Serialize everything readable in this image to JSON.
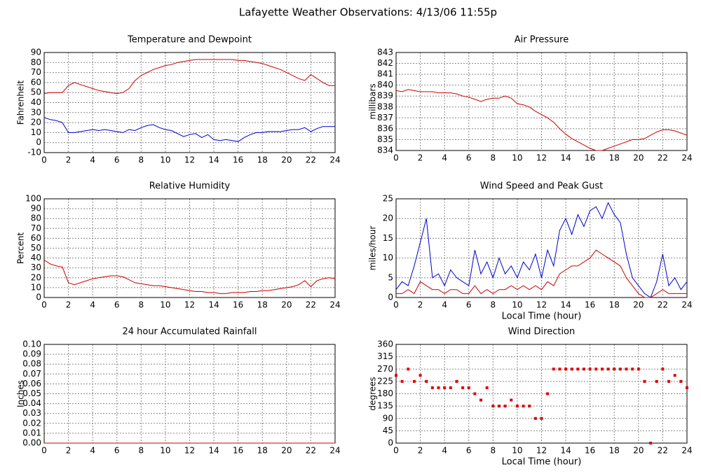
{
  "title": "Lafayette Weather Observations: 4/13/06 11:55p",
  "chart_data": [
    {
      "type": "line",
      "title": "Temperature and Dewpoint",
      "ylabel": "Fahrenheit",
      "x": [
        0,
        0.5,
        1,
        1.5,
        2,
        2.5,
        3,
        3.5,
        4,
        4.5,
        5,
        5.5,
        6,
        6.5,
        7,
        7.5,
        8,
        8.5,
        9,
        9.5,
        10,
        10.5,
        11,
        11.5,
        12,
        12.5,
        13,
        13.5,
        14,
        14.5,
        15,
        15.5,
        16,
        16.5,
        17,
        17.5,
        18,
        18.5,
        19,
        19.5,
        20,
        20.5,
        21,
        21.5,
        22,
        22.5,
        23,
        23.5,
        24
      ],
      "series": [
        {
          "color": "#cc0000",
          "values": [
            49,
            50,
            50,
            50,
            57,
            60,
            58,
            56,
            54,
            52,
            51,
            50,
            49,
            50,
            54,
            62,
            67,
            70,
            73,
            75,
            77,
            78,
            80,
            81,
            82,
            83,
            83,
            83,
            83,
            83,
            83,
            83,
            82,
            82,
            81,
            80,
            79,
            77,
            75,
            73,
            70,
            67,
            64,
            62,
            68,
            64,
            60,
            57,
            57
          ]
        },
        {
          "color": "#0000cc",
          "values": [
            25,
            23,
            22,
            20,
            10,
            10,
            11,
            12,
            13,
            12,
            13,
            12,
            11,
            10,
            13,
            12,
            15,
            17,
            18,
            15,
            13,
            12,
            9,
            6,
            8,
            9,
            5,
            8,
            3,
            2,
            3,
            2,
            1,
            5,
            8,
            10,
            10,
            11,
            11,
            11,
            12,
            13,
            13,
            15,
            11,
            14,
            16,
            16,
            16
          ]
        }
      ],
      "xlim": [
        0,
        24
      ],
      "xticks": [
        0,
        2,
        4,
        6,
        8,
        10,
        12,
        14,
        16,
        18,
        20,
        22,
        24
      ],
      "ylim": [
        -10,
        90
      ],
      "yticks": [
        -10,
        0,
        10,
        20,
        30,
        40,
        50,
        60,
        70,
        80,
        90
      ],
      "grid": true
    },
    {
      "type": "line",
      "title": "Air Pressure",
      "ylabel": "millibars",
      "x": [
        0,
        0.5,
        1,
        1.5,
        2,
        2.5,
        3,
        3.5,
        4,
        4.5,
        5,
        5.5,
        6,
        6.5,
        7,
        7.5,
        8,
        8.5,
        9,
        9.5,
        10,
        10.5,
        11,
        11.5,
        12,
        12.5,
        13,
        13.5,
        14,
        14.5,
        15,
        15.5,
        16,
        16.5,
        17,
        17.5,
        18,
        18.5,
        19,
        19.5,
        20,
        20.5,
        21,
        21.5,
        22,
        22.5,
        23,
        23.5,
        24
      ],
      "series": [
        {
          "color": "#cc0000",
          "values": [
            839.5,
            839.4,
            839.6,
            839.5,
            839.4,
            839.4,
            839.4,
            839.3,
            839.3,
            839.3,
            839.2,
            839.0,
            838.9,
            838.7,
            838.5,
            838.7,
            838.8,
            838.8,
            839.0,
            838.8,
            838.3,
            838.2,
            838.0,
            837.6,
            837.3,
            837.0,
            836.6,
            836.0,
            835.5,
            835.1,
            834.8,
            834.5,
            834.2,
            834.0,
            834.0,
            834.2,
            834.4,
            834.6,
            834.8,
            835.0,
            835.0,
            835.1,
            835.4,
            835.7,
            835.9,
            835.9,
            835.8,
            835.6,
            835.4
          ]
        }
      ],
      "xlim": [
        0,
        24
      ],
      "xticks": [
        0,
        2,
        4,
        6,
        8,
        10,
        12,
        14,
        16,
        18,
        20,
        22,
        24
      ],
      "ylim": [
        834,
        843
      ],
      "yticks": [
        834,
        835,
        836,
        837,
        838,
        839,
        840,
        841,
        842,
        843
      ],
      "grid": true
    },
    {
      "type": "line",
      "title": "Relative Humidity",
      "ylabel": "Percent",
      "x": [
        0,
        0.5,
        1,
        1.5,
        2,
        2.5,
        3,
        3.5,
        4,
        4.5,
        5,
        5.5,
        6,
        6.5,
        7,
        7.5,
        8,
        8.5,
        9,
        9.5,
        10,
        10.5,
        11,
        11.5,
        12,
        12.5,
        13,
        13.5,
        14,
        14.5,
        15,
        15.5,
        16,
        16.5,
        17,
        17.5,
        18,
        18.5,
        19,
        19.5,
        20,
        20.5,
        21,
        21.5,
        22,
        22.5,
        23,
        23.5,
        24
      ],
      "series": [
        {
          "color": "#cc0000",
          "values": [
            38,
            34,
            32,
            31,
            15,
            13,
            15,
            17,
            19,
            20,
            21,
            22,
            22,
            21,
            18,
            15,
            14,
            13,
            12,
            12,
            11,
            10,
            9,
            8,
            7,
            6,
            6,
            5,
            5,
            4,
            4,
            5,
            5,
            5,
            6,
            6,
            7,
            7,
            8,
            9,
            10,
            11,
            13,
            17,
            11,
            17,
            19,
            20,
            19
          ]
        }
      ],
      "xlim": [
        0,
        24
      ],
      "xticks": [
        0,
        2,
        4,
        6,
        8,
        10,
        12,
        14,
        16,
        18,
        20,
        22,
        24
      ],
      "ylim": [
        0,
        100
      ],
      "yticks": [
        0,
        10,
        20,
        30,
        40,
        50,
        60,
        70,
        80,
        90,
        100
      ],
      "grid": true
    },
    {
      "type": "line",
      "title": "Wind Speed and Peak Gust",
      "ylabel": "miles/hour",
      "xlabel": "Local Time (hour)",
      "x": [
        0,
        0.5,
        1,
        1.5,
        2,
        2.5,
        3,
        3.5,
        4,
        4.5,
        5,
        5.5,
        6,
        6.5,
        7,
        7.5,
        8,
        8.5,
        9,
        9.5,
        10,
        10.5,
        11,
        11.5,
        12,
        12.5,
        13,
        13.5,
        14,
        14.5,
        15,
        15.5,
        16,
        16.5,
        17,
        17.5,
        18,
        18.5,
        19,
        19.5,
        20,
        20.5,
        21,
        21.5,
        22,
        22.5,
        23,
        23.5,
        24
      ],
      "series": [
        {
          "color": "#0000cc",
          "values": [
            2,
            4,
            3,
            8,
            14,
            20,
            5,
            6,
            3,
            7,
            5,
            4,
            3,
            12,
            6,
            9,
            5,
            10,
            6,
            8,
            5,
            9,
            7,
            11,
            5,
            12,
            8,
            17,
            20,
            16,
            21,
            18,
            22,
            23,
            20,
            24,
            21,
            19,
            11,
            5,
            3,
            1,
            0,
            4,
            11,
            3,
            5,
            2,
            4
          ]
        },
        {
          "color": "#cc0000",
          "values": [
            1,
            1,
            2,
            1,
            4,
            3,
            2,
            2,
            1,
            2,
            2,
            1,
            1,
            3,
            1,
            2,
            1,
            2,
            2,
            3,
            2,
            3,
            2,
            3,
            2,
            4,
            3,
            6,
            7,
            8,
            8,
            9,
            10,
            12,
            11,
            10,
            9,
            8,
            5,
            3,
            1,
            0,
            0,
            1,
            2,
            1,
            1,
            1,
            1
          ]
        }
      ],
      "xlim": [
        0,
        24
      ],
      "xticks": [
        0,
        2,
        4,
        6,
        8,
        10,
        12,
        14,
        16,
        18,
        20,
        22,
        24
      ],
      "ylim": [
        0,
        25
      ],
      "yticks": [
        0,
        5,
        10,
        15,
        20,
        25
      ],
      "grid": true
    },
    {
      "type": "line",
      "title": "24 hour Accumulated Rainfall",
      "ylabel": "Inches",
      "x": [
        0,
        24
      ],
      "series": [
        {
          "color": "#cc0000",
          "values": [
            0,
            0
          ]
        }
      ],
      "xlim": [
        0,
        24
      ],
      "xticks": [
        0,
        2,
        4,
        6,
        8,
        10,
        12,
        14,
        16,
        18,
        20,
        22,
        24
      ],
      "ylim": [
        0,
        0.1
      ],
      "yticks": [
        {
          "value": 0,
          "label": "0.00"
        },
        0.01,
        0.02,
        0.03,
        0.04,
        0.05,
        0.06,
        0.07,
        0.08,
        0.09,
        {
          "value": 0.1,
          "label": "0.10"
        }
      ],
      "grid": true
    },
    {
      "type": "scatter",
      "title": "Wind Direction",
      "ylabel": "degrees",
      "xlabel": "Local Time (hour)",
      "x": [
        0,
        0.5,
        1,
        1.5,
        2,
        2.5,
        3,
        3.5,
        4,
        4.5,
        5,
        5.5,
        6,
        6.5,
        7,
        7.5,
        8,
        8.5,
        9,
        9.5,
        10,
        10.5,
        11,
        11.5,
        12,
        12.5,
        13,
        13.5,
        14,
        14.5,
        15,
        15.5,
        16,
        16.5,
        17,
        17.5,
        18,
        18.5,
        19,
        19.5,
        20,
        20.5,
        21,
        21.5,
        22,
        22.5,
        23,
        23.5,
        24
      ],
      "series": [
        {
          "color": "#dd0000",
          "values": [
            247,
            225,
            270,
            225,
            247,
            225,
            202,
            202,
            202,
            202,
            225,
            202,
            202,
            180,
            157,
            202,
            135,
            135,
            135,
            157,
            135,
            135,
            135,
            90,
            90,
            180,
            270,
            270,
            270,
            270,
            270,
            270,
            270,
            270,
            270,
            270,
            270,
            270,
            270,
            270,
            270,
            225,
            0,
            225,
            270,
            225,
            247,
            225,
            202
          ]
        }
      ],
      "xlim": [
        0,
        24
      ],
      "xticks": [
        0,
        2,
        4,
        6,
        8,
        10,
        12,
        14,
        16,
        18,
        20,
        22,
        24
      ],
      "ylim": [
        0,
        360
      ],
      "yticks": [
        0,
        45,
        90,
        135,
        180,
        225,
        270,
        315,
        360
      ],
      "grid": true
    }
  ]
}
